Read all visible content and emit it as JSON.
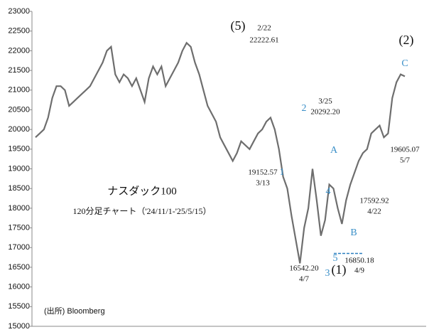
{
  "chart_data": {
    "type": "line",
    "title": "ナスダック100",
    "subtitle": "120分足チャート（'24/11/1-'25/5/15）",
    "source": "(出所) Bloomberg",
    "color": "#6e6e6e",
    "ylim": [
      15000,
      23000
    ],
    "yticks": [
      15000,
      15500,
      16000,
      16500,
      17000,
      17500,
      18000,
      18500,
      19000,
      19500,
      20000,
      20500,
      21000,
      21500,
      22000,
      22500,
      23000
    ],
    "values": [
      19800,
      19900,
      20000,
      20300,
      20800,
      21100,
      21100,
      21000,
      20600,
      20700,
      20800,
      20900,
      21000,
      21100,
      21300,
      21500,
      21700,
      22000,
      22100,
      21400,
      21200,
      21400,
      21300,
      21100,
      21300,
      21000,
      20700,
      21300,
      21600,
      21400,
      21600,
      21100,
      21300,
      21500,
      21700,
      22000,
      22200,
      22100,
      21700,
      21400,
      21000,
      20600,
      20400,
      20200,
      19800,
      19600,
      19400,
      19200,
      19400,
      19700,
      19600,
      19500,
      19700,
      19900,
      20000,
      20200,
      20300,
      20000,
      19500,
      18800,
      18500,
      17800,
      17200,
      16600,
      17500,
      18000,
      19000,
      18200,
      17300,
      17700,
      18600,
      18500,
      18000,
      17600,
      18200,
      18600,
      18900,
      19200,
      19400,
      19500,
      19900,
      20000,
      20100,
      19800,
      19900,
      20800,
      21200,
      21400,
      21350
    ],
    "hline": 16850.18,
    "hline_color": "#2a7fc0",
    "annotations": [
      {
        "text": "(5)",
        "color": "#111111"
      },
      {
        "text": "2/22",
        "color": "#111111"
      },
      {
        "text": "22222.61",
        "color": "#111111"
      },
      {
        "text": "3/25",
        "color": "#111111"
      },
      {
        "text": "20292.20",
        "color": "#111111"
      },
      {
        "text": "2",
        "color": "#3a8fc8"
      },
      {
        "text": "19152.57",
        "color": "#111111"
      },
      {
        "text": "3/13",
        "color": "#111111"
      },
      {
        "text": "1",
        "color": "#3a8fc8"
      },
      {
        "text": "A",
        "color": "#3a8fc8"
      },
      {
        "text": "4",
        "color": "#3a8fc8"
      },
      {
        "text": "17592.92",
        "color": "#111111"
      },
      {
        "text": "4/22",
        "color": "#111111"
      },
      {
        "text": "B",
        "color": "#3a8fc8"
      },
      {
        "text": "5",
        "color": "#3a8fc8"
      },
      {
        "text": "16850.18",
        "color": "#111111"
      },
      {
        "text": "4/9",
        "color": "#111111"
      },
      {
        "text": "16542.20",
        "color": "#111111"
      },
      {
        "text": "4/7",
        "color": "#111111"
      },
      {
        "text": "3",
        "color": "#3a8fc8"
      },
      {
        "text": "(1)",
        "color": "#111111"
      },
      {
        "text": "(2)",
        "color": "#111111"
      },
      {
        "text": "C",
        "color": "#3a8fc8"
      },
      {
        "text": "19605.07",
        "color": "#111111"
      },
      {
        "text": "5/7",
        "color": "#111111"
      }
    ]
  }
}
